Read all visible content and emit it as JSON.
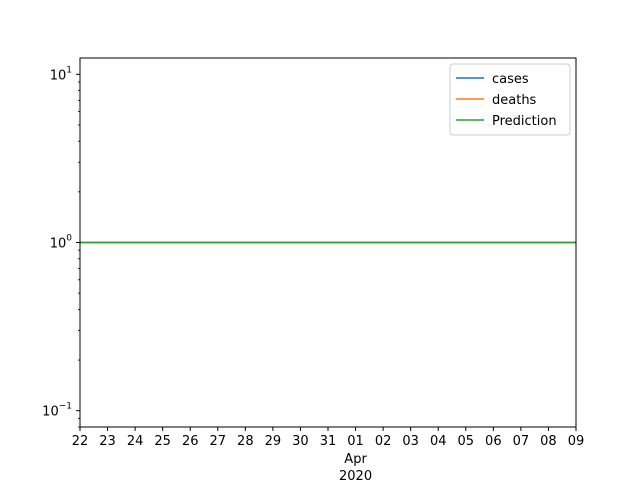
{
  "chart_data": {
    "type": "line",
    "title": "",
    "xlabel": "",
    "ylabel": "",
    "x_axis": {
      "kind": "date",
      "range": [
        "2020-03-22",
        "2020-04-09"
      ],
      "day_tick_labels": [
        "22",
        "23",
        "24",
        "25",
        "26",
        "27",
        "28",
        "29",
        "30",
        "31",
        "01",
        "02",
        "03",
        "04",
        "05",
        "06",
        "07",
        "08",
        "09"
      ],
      "month_label": "Apr",
      "year_label": "2020",
      "month_label_under": "01"
    },
    "y_axis": {
      "scale": "log",
      "range": [
        0.08,
        12.5
      ],
      "ticks": [
        {
          "value": 0.1,
          "base": "10",
          "exp": "−1"
        },
        {
          "value": 1,
          "base": "10",
          "exp": "0"
        },
        {
          "value": 10,
          "base": "10",
          "exp": "1"
        }
      ]
    },
    "grid": false,
    "legend": "top-right",
    "series": [
      {
        "name": "cases",
        "color": "#1f77b4",
        "points": [
          [
            "2020-03-22",
            1
          ],
          [
            "2020-04-09",
            1
          ]
        ]
      },
      {
        "name": "deaths",
        "color": "#ff7f0e",
        "points": [
          [
            "2020-03-22",
            1
          ],
          [
            "2020-04-09",
            1
          ]
        ]
      },
      {
        "name": "Prediction",
        "color": "#2ca02c",
        "points": [
          [
            "2020-03-22",
            1
          ],
          [
            "2020-04-09",
            1
          ]
        ]
      }
    ]
  }
}
